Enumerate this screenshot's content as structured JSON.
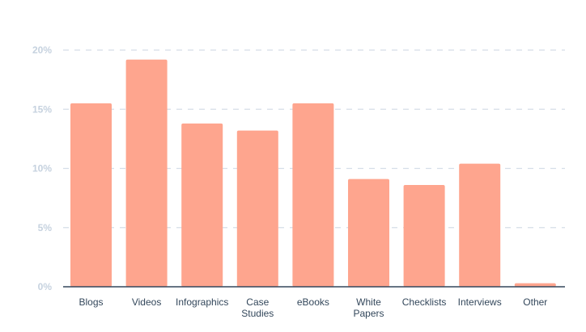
{
  "chart_data": {
    "type": "bar",
    "categories": [
      "Blogs",
      "Videos",
      "Infographics",
      "Case Studies",
      "eBooks",
      "White Papers",
      "Checklists",
      "Interviews",
      "Other"
    ],
    "category_lines": [
      [
        "Blogs"
      ],
      [
        "Videos"
      ],
      [
        "Infographics"
      ],
      [
        "Case",
        "Studies"
      ],
      [
        "eBooks"
      ],
      [
        "White",
        "Papers"
      ],
      [
        "Checklists"
      ],
      [
        "Interviews"
      ],
      [
        "Other"
      ]
    ],
    "values": [
      15.5,
      19.2,
      13.8,
      13.2,
      15.5,
      9.1,
      8.6,
      10.4,
      0.3
    ],
    "y_ticks": [
      "0%",
      "5%",
      "10%",
      "15%",
      "20%"
    ],
    "ylim": [
      0,
      20
    ],
    "unit": "%",
    "grid": true,
    "title": "",
    "xlabel": "",
    "ylabel": "",
    "colors": {
      "bar": "#fea58e",
      "grid": "#d5dee8",
      "axis": "#33475b",
      "tick_text": "#c6d2df",
      "label_text": "#33475b"
    }
  }
}
